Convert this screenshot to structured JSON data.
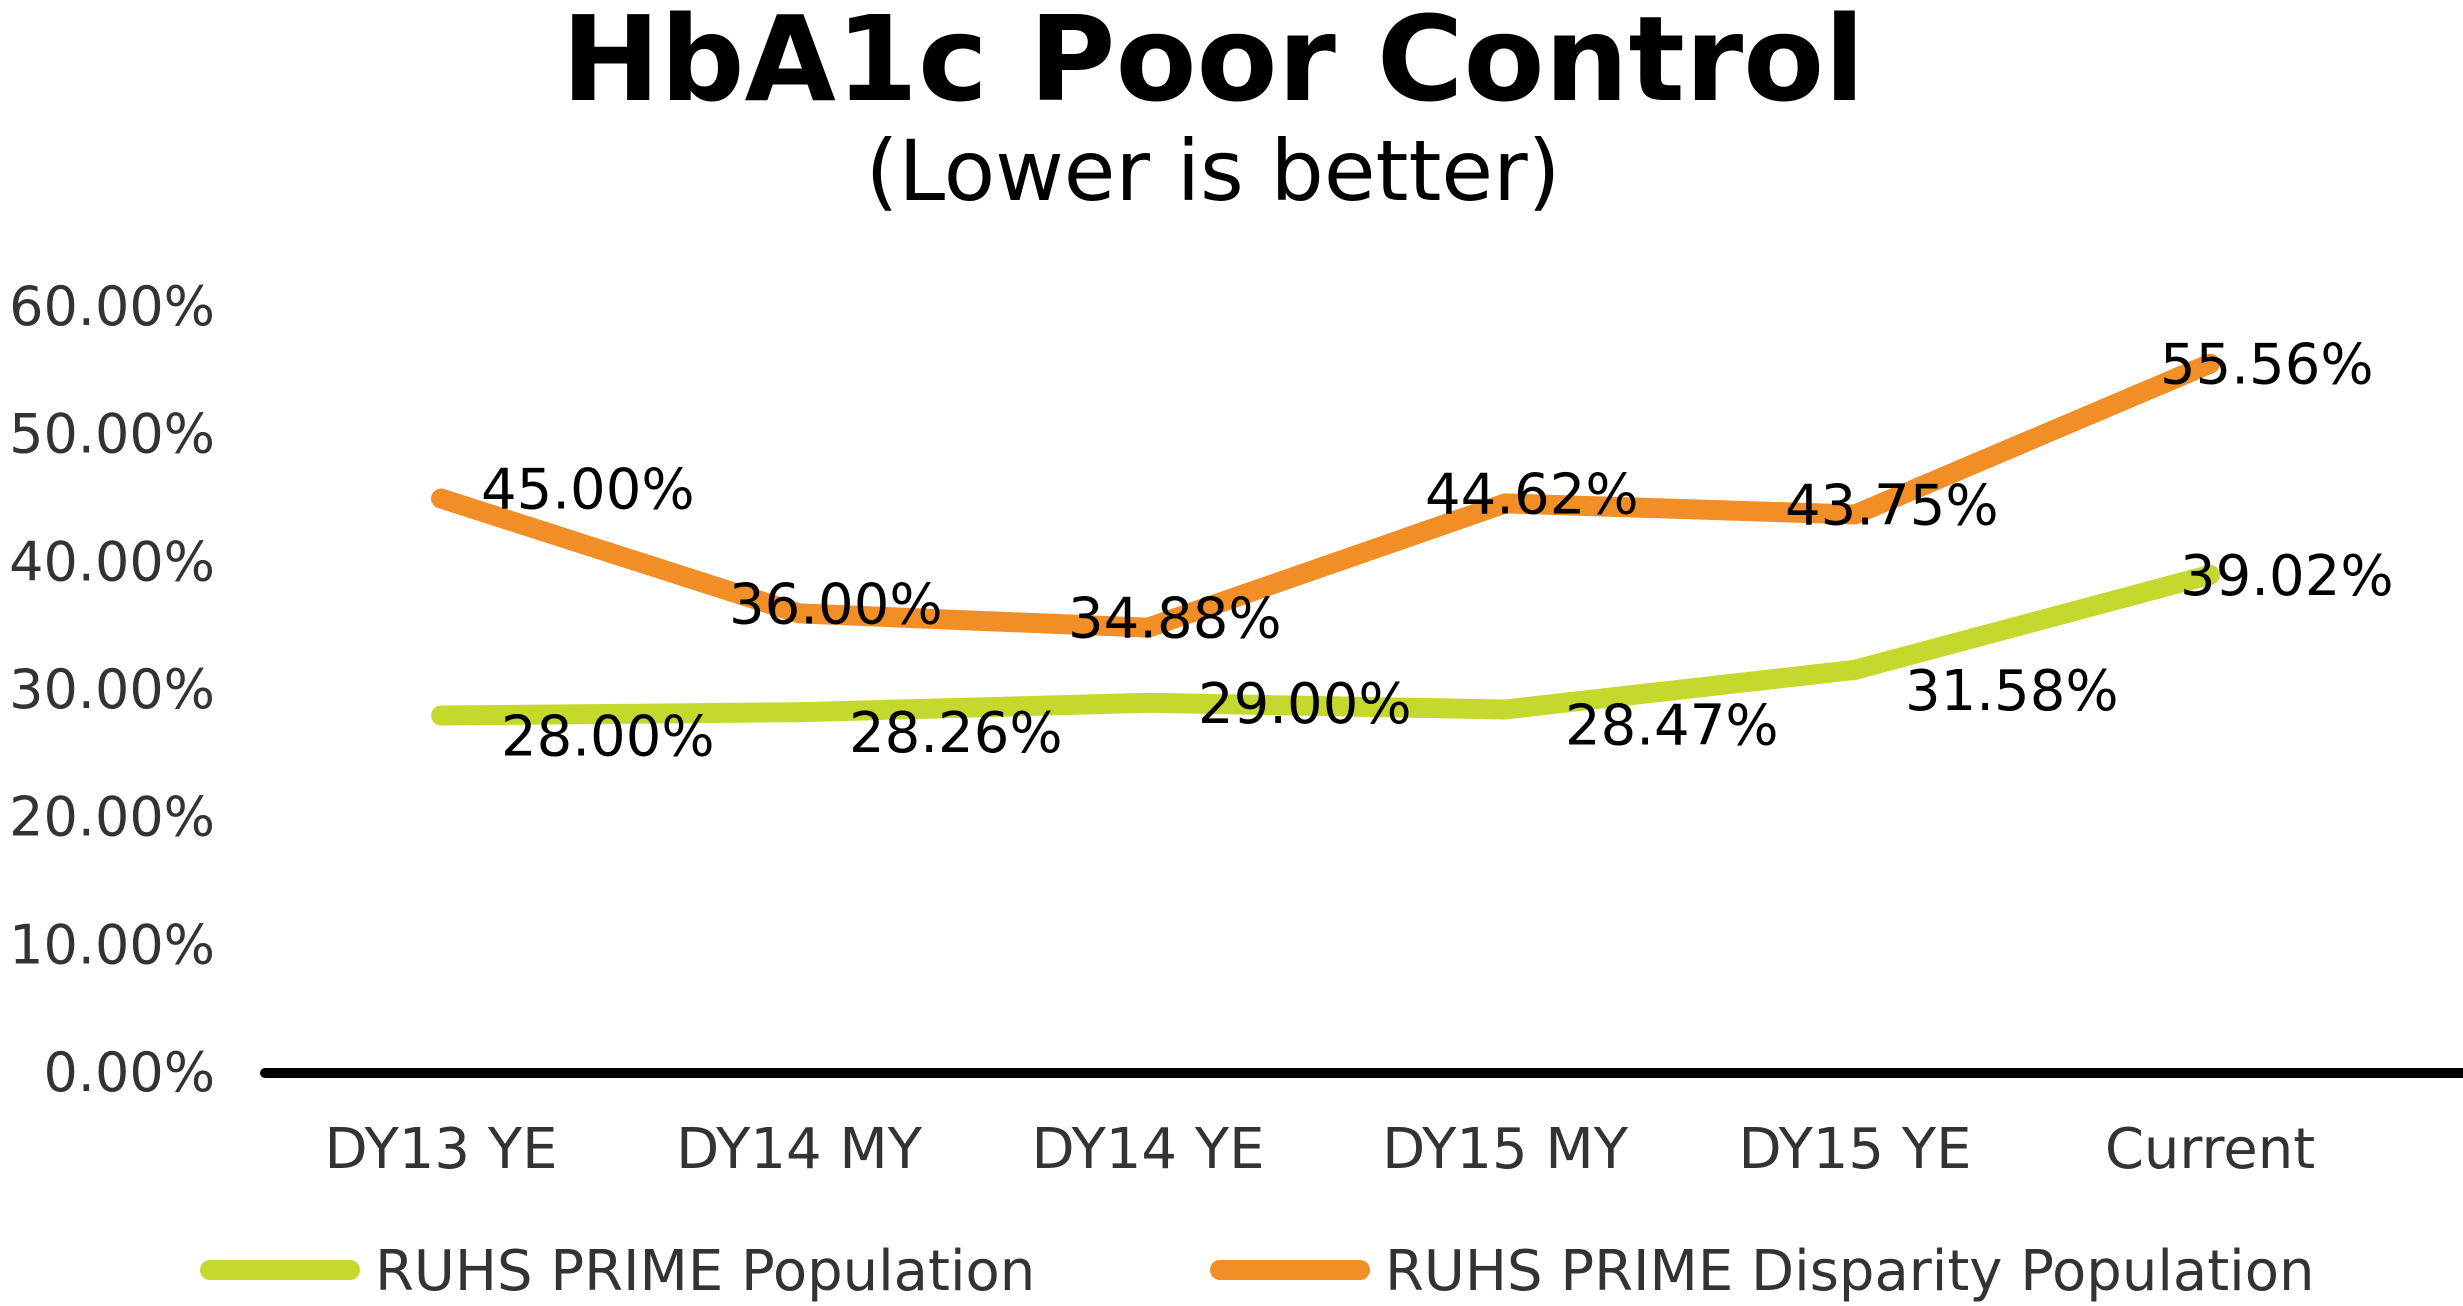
{
  "chart_data": {
    "type": "line",
    "title": "HbA1c Poor Control",
    "subtitle": "(Lower is better)",
    "categories": [
      "DY13 YE",
      "DY14 MY",
      "DY14 YE",
      "DY15 MY",
      "DY15 YE",
      "Current"
    ],
    "ylim": [
      0,
      60
    ],
    "yticks": [
      "0.00%",
      "10.00%",
      "20.00%",
      "30.00%",
      "40.00%",
      "50.00%",
      "60.00%"
    ],
    "grid": false,
    "legend_position": "bottom",
    "series": [
      {
        "name": "RUHS PRIME Population",
        "color": "#c5d82e",
        "values": [
          28.0,
          28.26,
          29.0,
          28.47,
          31.58,
          39.02
        ],
        "labels": [
          "28.00%",
          "28.26%",
          "29.00%",
          "28.47%",
          "31.58%",
          "39.02%"
        ]
      },
      {
        "name": "RUHS PRIME Disparity Population",
        "color": "#f28e26",
        "values": [
          45.0,
          36.0,
          34.88,
          44.62,
          43.75,
          55.56
        ],
        "labels": [
          "45.00%",
          "36.00%",
          "34.88%",
          "44.62%",
          "43.75%",
          "55.56%"
        ]
      }
    ]
  }
}
